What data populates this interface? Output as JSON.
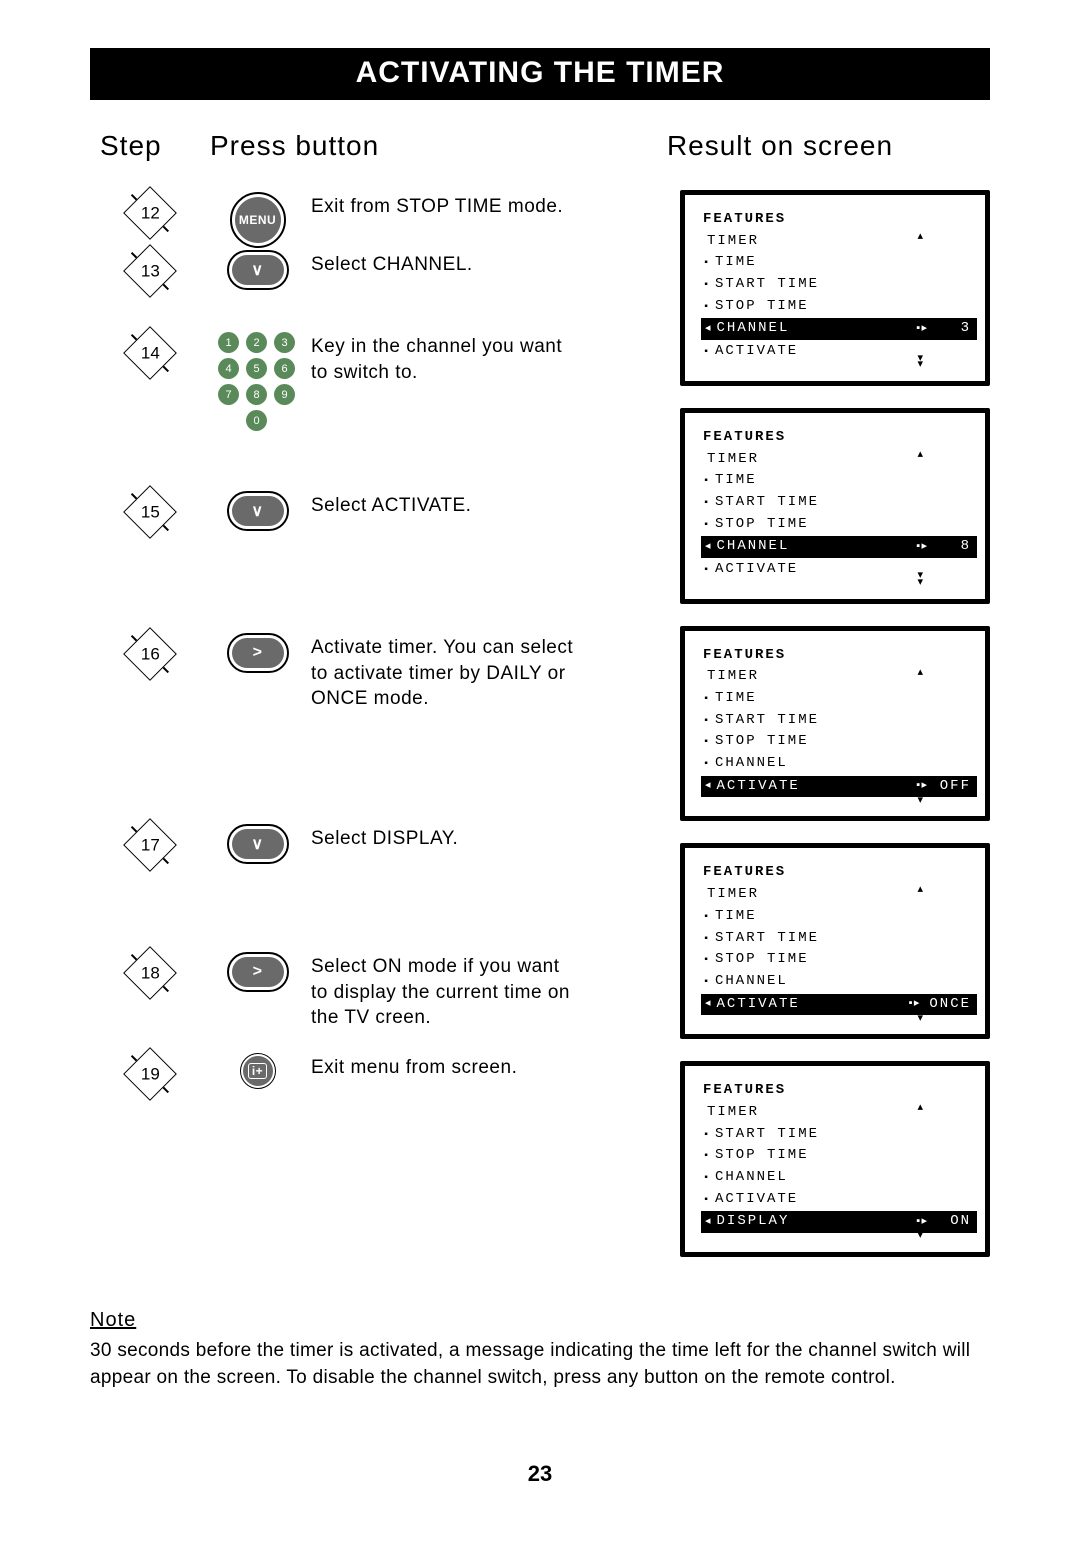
{
  "page": {
    "title": "ACTIVATING THE TIMER",
    "headers": {
      "step": "Step",
      "press": "Press button",
      "result": "Result on screen"
    },
    "pageNumber": "23",
    "note": {
      "heading": "Note",
      "body": "30 seconds before the timer is activated, a message indicating the time left for the channel switch will appear on the screen. To disable the channel switch, press any button on the remote control."
    }
  },
  "steps": [
    {
      "n": "12",
      "button": "MENU",
      "btnType": "circle",
      "desc": "Exit from STOP TIME mode."
    },
    {
      "n": "13",
      "button": "∨",
      "btnType": "pill",
      "desc": "Select CHANNEL."
    },
    {
      "n": "14",
      "button": "keypad",
      "btnType": "keypad",
      "desc": "Key in the channel you want to switch to."
    },
    {
      "n": "15",
      "button": "∨",
      "btnType": "pill",
      "desc": "Select ACTIVATE."
    },
    {
      "n": "16",
      "button": ">",
      "btnType": "pill",
      "desc": "Activate timer. You can select to activate timer by DAILY or ONCE  mode."
    },
    {
      "n": "17",
      "button": "∨",
      "btnType": "pill",
      "desc": "Select DISPLAY."
    },
    {
      "n": "18",
      "button": ">",
      "btnType": "pill",
      "desc": "Select ON mode if you want to display the current time on the TV creen."
    },
    {
      "n": "19",
      "button": "i+",
      "btnType": "smallcircle",
      "desc": "Exit menu from screen."
    }
  ],
  "screens": [
    {
      "hdr": "FEATURES",
      "sub": "TIMER",
      "items": [
        "TIME",
        "START TIME",
        "STOP TIME"
      ],
      "sel": {
        "label": "CHANNEL",
        "value": "3"
      },
      "post": [
        "ACTIVATE"
      ]
    },
    {
      "hdr": "FEATURES",
      "sub": "TIMER",
      "items": [
        "TIME",
        "START TIME",
        "STOP TIME"
      ],
      "sel": {
        "label": "CHANNEL",
        "value": "8"
      },
      "post": [
        "ACTIVATE"
      ]
    },
    {
      "hdr": "FEATURES",
      "sub": "TIMER",
      "items": [
        "TIME",
        "START TIME",
        "STOP TIME",
        "CHANNEL"
      ],
      "sel": {
        "label": "ACTIVATE",
        "value": "OFF"
      },
      "post": []
    },
    {
      "hdr": "FEATURES",
      "sub": "TIMER",
      "items": [
        "TIME",
        "START TIME",
        "STOP TIME",
        "CHANNEL"
      ],
      "sel": {
        "label": "ACTIVATE",
        "value": "ONCE"
      },
      "post": []
    },
    {
      "hdr": "FEATURES",
      "sub": "TIMER",
      "items": [
        "START TIME",
        "STOP TIME",
        "CHANNEL",
        "ACTIVATE"
      ],
      "sel": {
        "label": "DISPLAY",
        "value": "ON"
      },
      "post": []
    }
  ],
  "colors": {
    "keypad_bg": "#5a8a5a",
    "button_bg": "#6a6a6a"
  }
}
